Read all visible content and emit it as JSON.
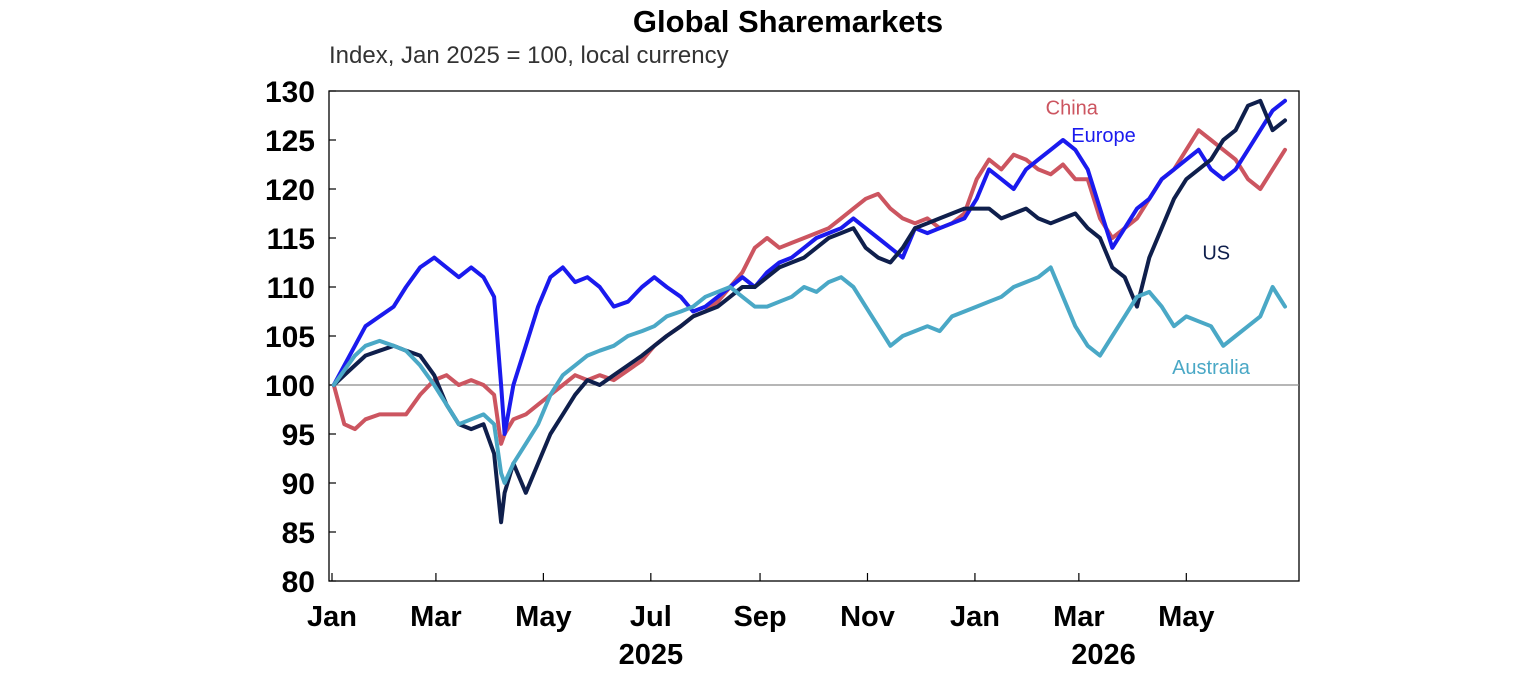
{
  "chart_data": {
    "type": "line",
    "title": "Global Sharemarkets",
    "subtitle": "Index, Jan 2025 = 100, local currency",
    "ylim": [
      80,
      130
    ],
    "yticks": [
      80,
      85,
      90,
      95,
      100,
      105,
      110,
      115,
      120,
      125,
      130
    ],
    "reference_line": 100,
    "x_start": "2025-01-01",
    "x_end": "2026-06-30",
    "xticks": [
      {
        "label": "Jan",
        "date": "2025-01-01"
      },
      {
        "label": "Mar",
        "date": "2025-03-01"
      },
      {
        "label": "May",
        "date": "2025-05-01"
      },
      {
        "label": "Jul",
        "date": "2025-07-01"
      },
      {
        "label": "Sep",
        "date": "2025-09-01"
      },
      {
        "label": "Nov",
        "date": "2025-11-01"
      },
      {
        "label": "Jan",
        "date": "2026-01-01"
      },
      {
        "label": "Mar",
        "date": "2026-03-01"
      },
      {
        "label": "May",
        "date": "2026-05-01"
      }
    ],
    "year_labels": [
      {
        "label": "2025",
        "date": "2025-07-01"
      },
      {
        "label": "2026",
        "date": "2026-03-15"
      }
    ],
    "grid": false,
    "legend": "inline labels",
    "series": [
      {
        "name": "China",
        "color": "#cc5560",
        "label_date": "2026-02-25",
        "label_value": 127.6,
        "x": [
          "2025-01-02",
          "2025-01-08",
          "2025-01-14",
          "2025-01-20",
          "2025-01-28",
          "2025-02-05",
          "2025-02-12",
          "2025-02-20",
          "2025-02-28",
          "2025-03-07",
          "2025-03-14",
          "2025-03-21",
          "2025-03-28",
          "2025-04-03",
          "2025-04-07",
          "2025-04-09",
          "2025-04-14",
          "2025-04-21",
          "2025-04-28",
          "2025-05-05",
          "2025-05-12",
          "2025-05-19",
          "2025-05-26",
          "2025-06-02",
          "2025-06-10",
          "2025-06-18",
          "2025-06-26",
          "2025-07-03",
          "2025-07-10",
          "2025-07-18",
          "2025-07-25",
          "2025-08-01",
          "2025-08-08",
          "2025-08-15",
          "2025-08-22",
          "2025-08-29",
          "2025-09-05",
          "2025-09-12",
          "2025-09-19",
          "2025-09-26",
          "2025-10-03",
          "2025-10-10",
          "2025-10-17",
          "2025-10-24",
          "2025-10-31",
          "2025-11-07",
          "2025-11-14",
          "2025-11-21",
          "2025-11-28",
          "2025-12-05",
          "2025-12-12",
          "2025-12-19",
          "2025-12-26",
          "2026-01-02",
          "2026-01-09",
          "2026-01-16",
          "2026-01-23",
          "2026-01-30",
          "2026-02-06",
          "2026-02-13",
          "2026-02-20",
          "2026-02-27",
          "2026-03-06",
          "2026-03-13",
          "2026-03-20",
          "2026-03-27",
          "2026-04-03",
          "2026-04-10",
          "2026-04-17",
          "2026-04-24",
          "2026-05-01",
          "2026-05-08",
          "2026-05-15",
          "2026-05-22",
          "2026-05-29",
          "2026-06-05",
          "2026-06-12",
          "2026-06-19",
          "2026-06-26"
        ],
        "values": [
          100,
          96,
          95.5,
          96.5,
          97,
          97,
          97,
          99,
          100.5,
          101,
          100,
          100.5,
          100,
          99,
          94,
          95,
          96.5,
          97,
          98,
          99,
          100,
          101,
          100.5,
          101,
          100.5,
          101.5,
          102.5,
          104,
          105,
          106,
          107,
          107.5,
          108.5,
          110,
          111.5,
          114,
          115,
          114,
          114.5,
          115,
          115.5,
          116,
          117,
          118,
          119,
          119.5,
          118,
          117,
          116.5,
          117,
          116,
          116.5,
          117.5,
          121,
          123,
          122,
          123.5,
          123,
          122,
          121.5,
          122.5,
          121,
          121,
          117,
          115,
          116,
          117,
          119,
          121,
          122,
          124,
          126,
          125,
          124,
          123,
          121,
          120,
          122,
          124
        ]
      },
      {
        "name": "Europe",
        "color": "#1a1aee",
        "label_date": "2026-03-15",
        "label_value": 124.8,
        "x": [
          "2025-01-02",
          "2025-01-08",
          "2025-01-14",
          "2025-01-20",
          "2025-01-28",
          "2025-02-05",
          "2025-02-12",
          "2025-02-20",
          "2025-02-28",
          "2025-03-07",
          "2025-03-14",
          "2025-03-21",
          "2025-03-28",
          "2025-04-03",
          "2025-04-07",
          "2025-04-09",
          "2025-04-14",
          "2025-04-21",
          "2025-04-28",
          "2025-05-05",
          "2025-05-12",
          "2025-05-19",
          "2025-05-26",
          "2025-06-02",
          "2025-06-10",
          "2025-06-18",
          "2025-06-26",
          "2025-07-03",
          "2025-07-10",
          "2025-07-18",
          "2025-07-25",
          "2025-08-01",
          "2025-08-08",
          "2025-08-15",
          "2025-08-22",
          "2025-08-29",
          "2025-09-05",
          "2025-09-12",
          "2025-09-19",
          "2025-09-26",
          "2025-10-03",
          "2025-10-10",
          "2025-10-17",
          "2025-10-24",
          "2025-10-31",
          "2025-11-07",
          "2025-11-14",
          "2025-11-21",
          "2025-11-28",
          "2025-12-05",
          "2025-12-12",
          "2025-12-19",
          "2025-12-26",
          "2026-01-02",
          "2026-01-09",
          "2026-01-16",
          "2026-01-23",
          "2026-01-30",
          "2026-02-06",
          "2026-02-13",
          "2026-02-20",
          "2026-02-27",
          "2026-03-06",
          "2026-03-13",
          "2026-03-20",
          "2026-03-27",
          "2026-04-03",
          "2026-04-10",
          "2026-04-17",
          "2026-04-24",
          "2026-05-01",
          "2026-05-08",
          "2026-05-15",
          "2026-05-22",
          "2026-05-29",
          "2026-06-05",
          "2026-06-12",
          "2026-06-19",
          "2026-06-26"
        ],
        "values": [
          100,
          102,
          104,
          106,
          107,
          108,
          110,
          112,
          113,
          112,
          111,
          112,
          111,
          109,
          100,
          95,
          100,
          104,
          108,
          111,
          112,
          110.5,
          111,
          110,
          108,
          108.5,
          110,
          111,
          110,
          109,
          107.5,
          108,
          109,
          110,
          111,
          110,
          111.5,
          112.5,
          113,
          114,
          115,
          115.5,
          116,
          117,
          116,
          115,
          114,
          113,
          116,
          115.5,
          116,
          116.5,
          117,
          119,
          122,
          121,
          120,
          122,
          123,
          124,
          125,
          124,
          122,
          118,
          114,
          116,
          118,
          119,
          121,
          122,
          123,
          124,
          122,
          121,
          122,
          124,
          126,
          128,
          129
        ]
      },
      {
        "name": "US",
        "color": "#0f1f4c",
        "label_date": "2026-05-18",
        "label_value": 112.8,
        "x": [
          "2025-01-02",
          "2025-01-08",
          "2025-01-14",
          "2025-01-20",
          "2025-01-28",
          "2025-02-05",
          "2025-02-12",
          "2025-02-20",
          "2025-02-28",
          "2025-03-07",
          "2025-03-14",
          "2025-03-21",
          "2025-03-28",
          "2025-04-03",
          "2025-04-07",
          "2025-04-09",
          "2025-04-14",
          "2025-04-21",
          "2025-04-28",
          "2025-05-05",
          "2025-05-12",
          "2025-05-19",
          "2025-05-26",
          "2025-06-02",
          "2025-06-10",
          "2025-06-18",
          "2025-06-26",
          "2025-07-03",
          "2025-07-10",
          "2025-07-18",
          "2025-07-25",
          "2025-08-01",
          "2025-08-08",
          "2025-08-15",
          "2025-08-22",
          "2025-08-29",
          "2025-09-05",
          "2025-09-12",
          "2025-09-19",
          "2025-09-26",
          "2025-10-03",
          "2025-10-10",
          "2025-10-17",
          "2025-10-24",
          "2025-10-31",
          "2025-11-07",
          "2025-11-14",
          "2025-11-21",
          "2025-11-28",
          "2025-12-05",
          "2025-12-12",
          "2025-12-19",
          "2025-12-26",
          "2026-01-02",
          "2026-01-09",
          "2026-01-16",
          "2026-01-23",
          "2026-01-30",
          "2026-02-06",
          "2026-02-13",
          "2026-02-20",
          "2026-02-27",
          "2026-03-06",
          "2026-03-13",
          "2026-03-20",
          "2026-03-27",
          "2026-04-03",
          "2026-04-10",
          "2026-04-17",
          "2026-04-24",
          "2026-05-01",
          "2026-05-08",
          "2026-05-15",
          "2026-05-22",
          "2026-05-29",
          "2026-06-05",
          "2026-06-12",
          "2026-06-19",
          "2026-06-26"
        ],
        "values": [
          100,
          101,
          102,
          103,
          103.5,
          104,
          103.5,
          103,
          101,
          98,
          96,
          95.5,
          96,
          93,
          86,
          89,
          92,
          89,
          92,
          95,
          97,
          99,
          100.5,
          100,
          101,
          102,
          103,
          104,
          105,
          106,
          107,
          107.5,
          108,
          109,
          110,
          110,
          111,
          112,
          112.5,
          113,
          114,
          115,
          115.5,
          116,
          114,
          113,
          112.5,
          114,
          116,
          116.5,
          117,
          117.5,
          118,
          118,
          118,
          117,
          117.5,
          118,
          117,
          116.5,
          117,
          117.5,
          116,
          115,
          112,
          111,
          108,
          113,
          116,
          119,
          121,
          122,
          123,
          125,
          126,
          128.5,
          129,
          126,
          127
        ]
      },
      {
        "name": "Australia",
        "color": "#4aa8c6",
        "label_date": "2026-05-15",
        "label_value": 101.1,
        "x": [
          "2025-01-02",
          "2025-01-08",
          "2025-01-14",
          "2025-01-20",
          "2025-01-28",
          "2025-02-05",
          "2025-02-12",
          "2025-02-20",
          "2025-02-28",
          "2025-03-07",
          "2025-03-14",
          "2025-03-21",
          "2025-03-28",
          "2025-04-03",
          "2025-04-07",
          "2025-04-09",
          "2025-04-14",
          "2025-04-21",
          "2025-04-28",
          "2025-05-05",
          "2025-05-12",
          "2025-05-19",
          "2025-05-26",
          "2025-06-02",
          "2025-06-10",
          "2025-06-18",
          "2025-06-26",
          "2025-07-03",
          "2025-07-10",
          "2025-07-18",
          "2025-07-25",
          "2025-08-01",
          "2025-08-08",
          "2025-08-15",
          "2025-08-22",
          "2025-08-29",
          "2025-09-05",
          "2025-09-12",
          "2025-09-19",
          "2025-09-26",
          "2025-10-03",
          "2025-10-10",
          "2025-10-17",
          "2025-10-24",
          "2025-10-31",
          "2025-11-07",
          "2025-11-14",
          "2025-11-21",
          "2025-11-28",
          "2025-12-05",
          "2025-12-12",
          "2025-12-19",
          "2025-12-26",
          "2026-01-02",
          "2026-01-09",
          "2026-01-16",
          "2026-01-23",
          "2026-01-30",
          "2026-02-06",
          "2026-02-13",
          "2026-02-20",
          "2026-02-27",
          "2026-03-06",
          "2026-03-13",
          "2026-03-20",
          "2026-03-27",
          "2026-04-03",
          "2026-04-10",
          "2026-04-17",
          "2026-04-24",
          "2026-05-01",
          "2026-05-08",
          "2026-05-15",
          "2026-05-22",
          "2026-05-29",
          "2026-06-05",
          "2026-06-12",
          "2026-06-19",
          "2026-06-26"
        ],
        "values": [
          100,
          101.5,
          103,
          104,
          104.5,
          104,
          103.5,
          102,
          100,
          98,
          96,
          96.5,
          97,
          96,
          91,
          90,
          92,
          94,
          96,
          99,
          101,
          102,
          103,
          103.5,
          104,
          105,
          105.5,
          106,
          107,
          107.5,
          108,
          109,
          109.5,
          110,
          109,
          108,
          108,
          108.5,
          109,
          110,
          109.5,
          110.5,
          111,
          110,
          108,
          106,
          104,
          105,
          105.5,
          106,
          105.5,
          107,
          107.5,
          108,
          108.5,
          109,
          110,
          110.5,
          111,
          112,
          109,
          106,
          104,
          103,
          105,
          107,
          109,
          109.5,
          108,
          106,
          107,
          106.5,
          106,
          104,
          105,
          106,
          107,
          110,
          108
        ]
      }
    ]
  }
}
